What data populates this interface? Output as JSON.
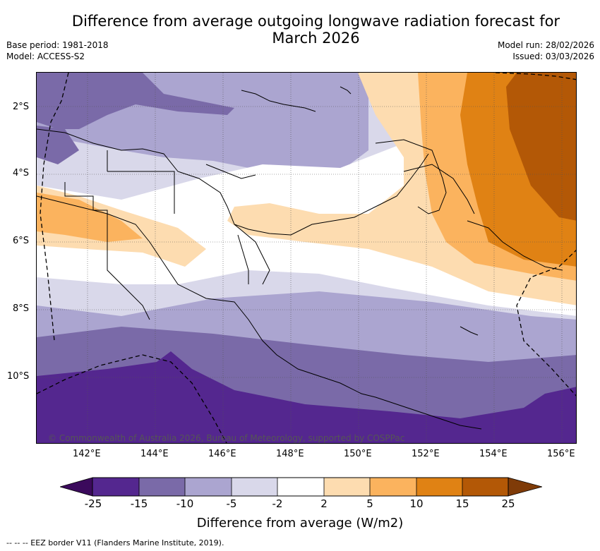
{
  "title": "Difference from average outgoing longwave radiation forecast for March 2026",
  "meta": {
    "base_period": "Base period: 1981-2018",
    "model": "Model: ACCESS-S2",
    "model_run": "Model run: 28/02/2026",
    "issued": "Issued: 03/03/2026"
  },
  "lat_labels": [
    "2°S",
    "4°S",
    "6°S",
    "8°S",
    "10°S"
  ],
  "lon_labels": [
    "142°E",
    "144°E",
    "146°E",
    "148°E",
    "150°E",
    "152°E",
    "154°E",
    "156°E"
  ],
  "copyright": "© Commonwealth of Australia 2026, Bureau of Meteorology, supported by COSPPac",
  "colorbar": {
    "title": "Difference from average (W/m2)",
    "ticks": [
      "-25",
      "-15",
      "-10",
      "-5",
      "-2",
      "2",
      "5",
      "10",
      "15",
      "25"
    ],
    "colors": {
      "below_-25": "#3b0a5c",
      "-25_-15": "#54278f",
      "-15_-10": "#7a6aa8",
      "-10_-5": "#aba5d0",
      "-5_-2": "#d9d8ea",
      "-2_2": "#ffffff",
      "2_5": "#fddcb0",
      "5_10": "#fbb35e",
      "10_15": "#e08214",
      "15_25": "#b35806",
      "above_25": "#7f3b08"
    }
  },
  "footer": "-- -- -- EEZ border V11 (Flanders Marine Institute, 2019)."
}
